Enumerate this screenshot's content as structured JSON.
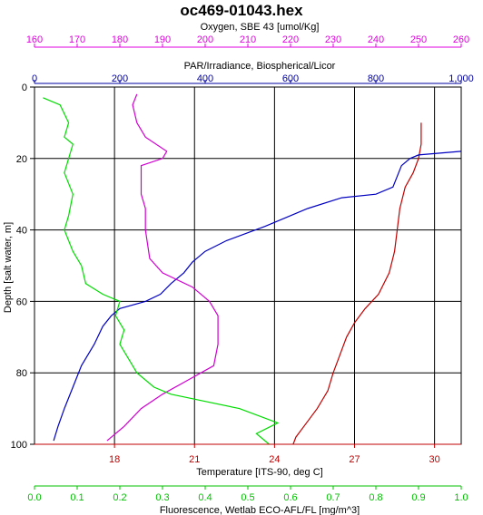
{
  "chart_data": {
    "type": "line",
    "title": "oc469-01043.hex",
    "ylabel": "Depth [salt water, m]",
    "ylim": [
      0,
      100
    ],
    "yticks": [
      0,
      20,
      40,
      60,
      80,
      100
    ],
    "grid": true,
    "axes": {
      "oxygen": {
        "label": "Oxygen, SBE 43 [umol/Kg]",
        "position": "top",
        "color": "#e000e0",
        "range": [
          160,
          260
        ],
        "ticks": [
          160,
          170,
          180,
          190,
          200,
          210,
          220,
          230,
          240,
          250,
          260
        ]
      },
      "par": {
        "label": "PAR/Irradiance, Biospherical/Licor",
        "position": "top",
        "color": "#0000a0",
        "range": [
          0,
          1000
        ],
        "ticks": [
          0,
          200,
          400,
          600,
          800,
          "1,000"
        ]
      },
      "temperature": {
        "label": "Temperature [ITS-90, deg C]",
        "position": "bottom",
        "color": "#c00000",
        "range": [
          15,
          31
        ],
        "ticks": [
          18,
          21,
          24,
          27,
          30
        ]
      },
      "fluorescence": {
        "label": "Fluorescence, Wetlab ECO-AFL/FL [mg/m^3]",
        "position": "bottom",
        "color": "#00c000",
        "range": [
          0,
          1
        ],
        "ticks": [
          "0.0",
          "0.1",
          "0.2",
          "0.3",
          "0.4",
          "0.5",
          "0.6",
          "0.7",
          "0.8",
          "0.9",
          "1.0"
        ]
      }
    },
    "series": [
      {
        "axis": "temperature",
        "color": "#c00000",
        "points": [
          [
            29.5,
            10
          ],
          [
            29.5,
            16
          ],
          [
            29.4,
            20
          ],
          [
            29.2,
            24
          ],
          [
            28.9,
            28
          ],
          [
            28.7,
            34
          ],
          [
            28.6,
            40
          ],
          [
            28.5,
            46
          ],
          [
            28.3,
            52
          ],
          [
            27.9,
            58
          ],
          [
            27.4,
            62
          ],
          [
            27.0,
            66
          ],
          [
            26.7,
            70
          ],
          [
            26.4,
            76
          ],
          [
            26.2,
            80
          ],
          [
            26.0,
            85
          ],
          [
            25.6,
            90
          ],
          [
            25.1,
            95
          ],
          [
            24.8,
            98
          ],
          [
            24.7,
            100
          ]
        ]
      },
      {
        "axis": "par",
        "color": "#0000c0",
        "points": [
          [
            1000,
            18
          ],
          [
            900,
            19
          ],
          [
            880,
            20
          ],
          [
            860,
            22
          ],
          [
            840,
            28
          ],
          [
            800,
            30
          ],
          [
            720,
            31
          ],
          [
            640,
            34
          ],
          [
            580,
            37
          ],
          [
            540,
            39
          ],
          [
            450,
            43
          ],
          [
            400,
            46
          ],
          [
            370,
            49
          ],
          [
            350,
            52
          ],
          [
            320,
            55
          ],
          [
            295,
            58
          ],
          [
            260,
            60
          ],
          [
            200,
            62
          ],
          [
            180,
            64
          ],
          [
            160,
            67
          ],
          [
            140,
            72
          ],
          [
            110,
            78
          ],
          [
            90,
            84
          ],
          [
            70,
            90
          ],
          [
            55,
            95
          ],
          [
            45,
            99
          ]
        ]
      },
      {
        "axis": "oxygen",
        "color": "#d000d0",
        "points": [
          [
            184,
            2
          ],
          [
            183,
            5
          ],
          [
            184,
            10
          ],
          [
            186,
            14
          ],
          [
            191,
            18
          ],
          [
            190,
            20
          ],
          [
            185,
            22
          ],
          [
            185,
            30
          ],
          [
            186,
            34
          ],
          [
            186,
            40
          ],
          [
            187,
            48
          ],
          [
            190,
            52
          ],
          [
            197,
            56
          ],
          [
            201,
            60
          ],
          [
            203,
            64
          ],
          [
            203,
            72
          ],
          [
            202,
            78
          ],
          [
            196,
            82
          ],
          [
            190,
            86
          ],
          [
            185,
            90
          ],
          [
            181,
            95
          ],
          [
            177,
            99
          ]
        ]
      },
      {
        "axis": "fluorescence",
        "color": "#00dc00",
        "points": [
          [
            0.02,
            3
          ],
          [
            0.06,
            5
          ],
          [
            0.08,
            10
          ],
          [
            0.07,
            14
          ],
          [
            0.09,
            16
          ],
          [
            0.08,
            20
          ],
          [
            0.07,
            24
          ],
          [
            0.09,
            30
          ],
          [
            0.08,
            36
          ],
          [
            0.07,
            40
          ],
          [
            0.09,
            46
          ],
          [
            0.11,
            50
          ],
          [
            0.12,
            55
          ],
          [
            0.16,
            58
          ],
          [
            0.2,
            60
          ],
          [
            0.19,
            64
          ],
          [
            0.21,
            68
          ],
          [
            0.2,
            72
          ],
          [
            0.22,
            76
          ],
          [
            0.24,
            80
          ],
          [
            0.28,
            84
          ],
          [
            0.32,
            86
          ],
          [
            0.4,
            88
          ],
          [
            0.48,
            90
          ],
          [
            0.57,
            94
          ],
          [
            0.52,
            97
          ],
          [
            0.55,
            100
          ]
        ]
      }
    ]
  }
}
